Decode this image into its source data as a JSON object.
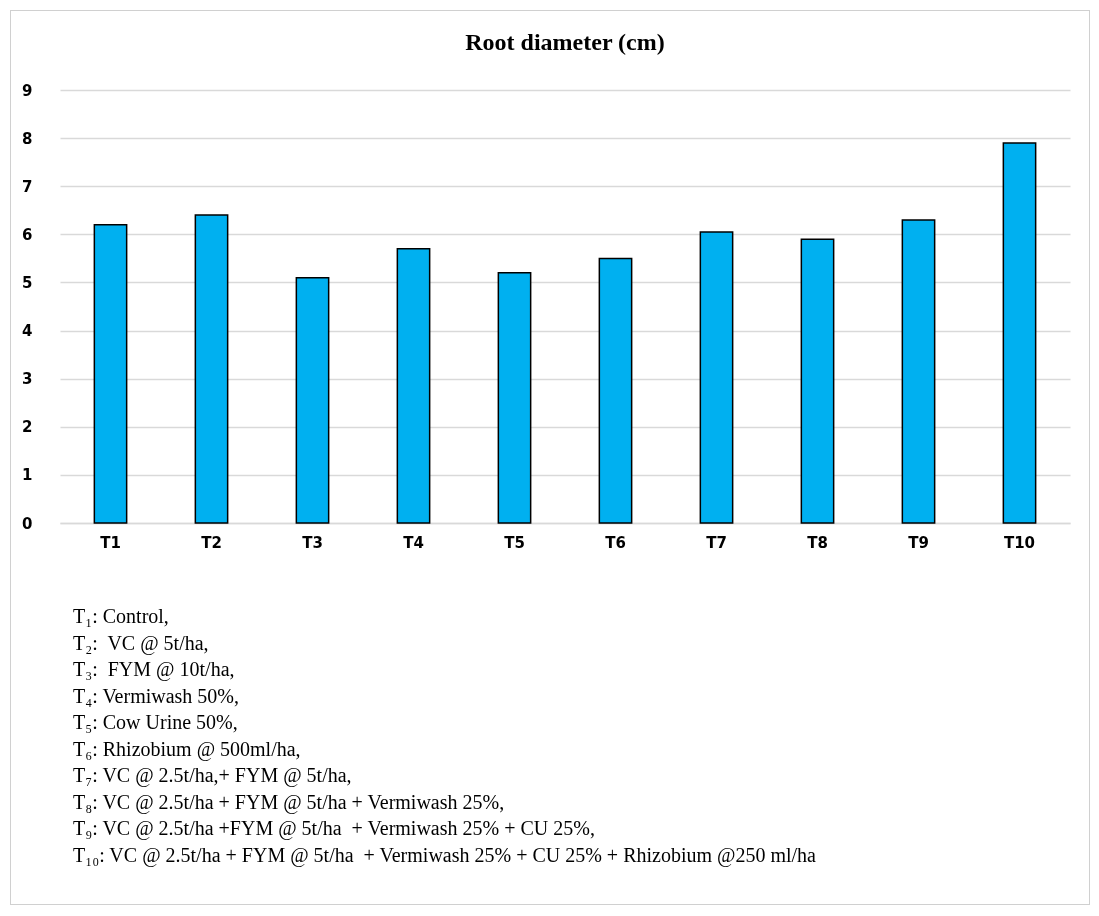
{
  "chart_data": {
    "type": "bar",
    "title": "Root diameter (cm)",
    "categories": [
      "T1",
      "T2",
      "T3",
      "T4",
      "T5",
      "T6",
      "T7",
      "T8",
      "T9",
      "T10"
    ],
    "values": [
      6.2,
      6.4,
      5.1,
      5.7,
      5.2,
      5.5,
      6.05,
      5.9,
      6.3,
      7.9
    ],
    "color": "#00b0f0",
    "ylim": [
      0,
      9
    ],
    "yticks": [
      0,
      1,
      2,
      3,
      4,
      5,
      6,
      7,
      8,
      9
    ],
    "grid": "y",
    "annotations": [
      "T₁: Control,",
      "T₂:  VC @ 5t/ha,",
      "T₃:  FYM @ 10t/ha,",
      "T₄: Vermiwash 50%,",
      "T₅: Cow Urine 50%,",
      "T₆: Rhizobium @ 500ml/ha,",
      "T₇: VC @ 2.5t/ha,+ FYM @ 5t/ha,",
      "T₈: VC @ 2.5t/ha + FYM @ 5t/ha + Vermiwash 25%,",
      "T₉: VC @ 2.5t/ha +FYM @ 5t/ha  + Vermiwash 25% + CU 25%,",
      "T₁₀: VC @ 2.5t/ha + FYM @ 5t/ha  + Vermiwash 25% + CU 25% + Rhizobium @250 ml/ha"
    ]
  }
}
